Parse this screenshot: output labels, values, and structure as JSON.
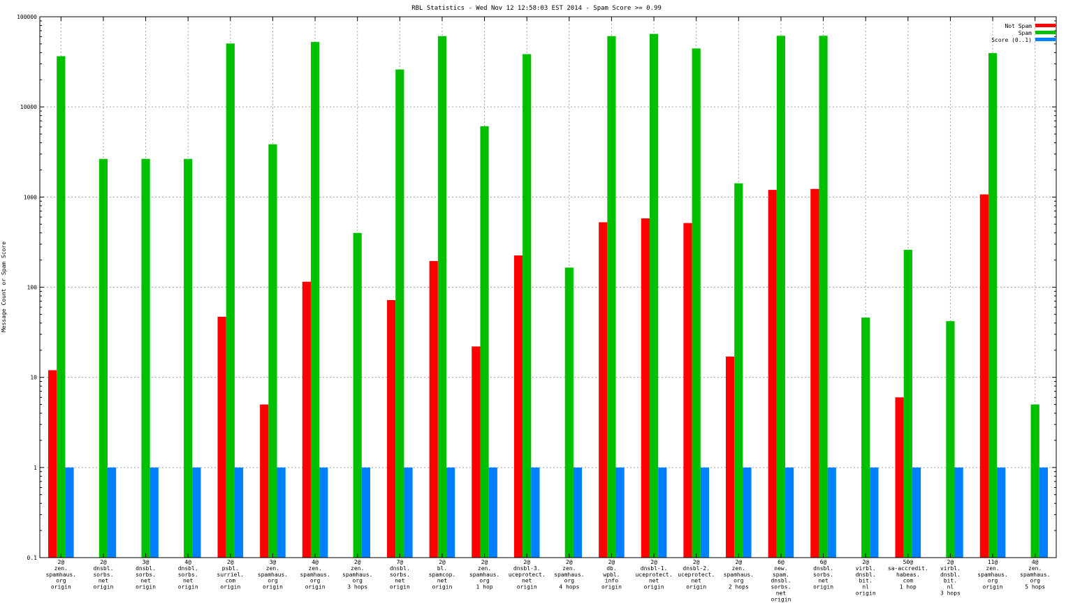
{
  "chart_data": {
    "type": "bar",
    "title": "RBL Statistics - Wed Nov 12 12:58:03 EST 2014 - Spam Score >= 0.99",
    "ylabel": "Message Count or Spam Score",
    "xlabel": "",
    "yscale": "log",
    "ylim": [
      0.1,
      100000
    ],
    "yticks": [
      0.1,
      1,
      10,
      100,
      1000,
      10000,
      100000
    ],
    "ytick_labels": [
      "0.1",
      "1",
      "10",
      "100",
      "1000",
      "10000",
      "100000"
    ],
    "grid": true,
    "legend_position": "top-right",
    "categories": [
      [
        "2@",
        "zen.",
        "spamhaus.",
        "org",
        "origin"
      ],
      [
        "2@",
        "dnsbl.",
        "sorbs.",
        "net",
        "origin"
      ],
      [
        "3@",
        "dnsbl.",
        "sorbs.",
        "net",
        "origin"
      ],
      [
        "4@",
        "dnsbl.",
        "sorbs.",
        "net",
        "origin"
      ],
      [
        "2@",
        "psbl.",
        "surriel.",
        "com",
        "origin"
      ],
      [
        "3@",
        "zen.",
        "spamhaus.",
        "org",
        "origin"
      ],
      [
        "4@",
        "zen.",
        "spamhaus.",
        "org",
        "origin"
      ],
      [
        "2@",
        "zen.",
        "spamhaus.",
        "org",
        "3 hops"
      ],
      [
        "7@",
        "dnsbl.",
        "sorbs.",
        "net",
        "origin"
      ],
      [
        "2@",
        "bl.",
        "spamcop.",
        "net",
        "origin"
      ],
      [
        "2@",
        "zen.",
        "spamhaus.",
        "org",
        "1 hop"
      ],
      [
        "2@",
        "dnsbl-3.",
        "uceprotect.",
        "net",
        "origin"
      ],
      [
        "2@",
        "zen.",
        "spamhaus.",
        "org",
        "4 hops"
      ],
      [
        "2@",
        "db.",
        "wpbl.",
        "info",
        "origin"
      ],
      [
        "2@",
        "dnsbl-1.",
        "uceprotect.",
        "net",
        "origin"
      ],
      [
        "2@",
        "dnsbl-2.",
        "uceprotect.",
        "net",
        "origin"
      ],
      [
        "2@",
        "zen.",
        "spamhaus.",
        "org",
        "2 hops"
      ],
      [
        "6@",
        "new.",
        "spam.",
        "dnsbl.",
        "sorbs.",
        "net",
        "origin"
      ],
      [
        "6@",
        "dnsbl.",
        "sorbs.",
        "net",
        "origin"
      ],
      [
        "2@",
        "virbl.",
        "dnsbl.",
        "bit.",
        "nl",
        "origin"
      ],
      [
        "50@",
        "sa-accredit.",
        "habeas.",
        "com",
        "1 hop"
      ],
      [
        "2@",
        "virbl.",
        "dnsbl.",
        "bit.",
        "nl",
        "3 hops"
      ],
      [
        "11@",
        "zen.",
        "spamhaus.",
        "org",
        "origin"
      ],
      [
        "4@",
        "zen.",
        "spamhaus.",
        "org",
        "5 hops"
      ]
    ],
    "series": [
      {
        "name": "Not Spam",
        "color": "#ff0000",
        "values": [
          12,
          null,
          null,
          null,
          47,
          5,
          115,
          null,
          72,
          195,
          22,
          225,
          null,
          525,
          580,
          515,
          17,
          1200,
          1230,
          null,
          6,
          null,
          1070,
          null
        ]
      },
      {
        "name": "Spam",
        "color": "#00c000",
        "values": [
          36500,
          2650,
          2650,
          2650,
          50500,
          3850,
          52500,
          400,
          26000,
          61000,
          6100,
          38500,
          165,
          61000,
          64500,
          44500,
          1420,
          61500,
          61500,
          46,
          260,
          42,
          39500,
          5
        ]
      },
      {
        "name": "Score (0..1)",
        "color": "#0080ff",
        "values": [
          1,
          1,
          1,
          1,
          1,
          1,
          1,
          1,
          1,
          1,
          1,
          1,
          1,
          1,
          1,
          1,
          1,
          1,
          1,
          1,
          1,
          1,
          1,
          1
        ]
      }
    ]
  }
}
